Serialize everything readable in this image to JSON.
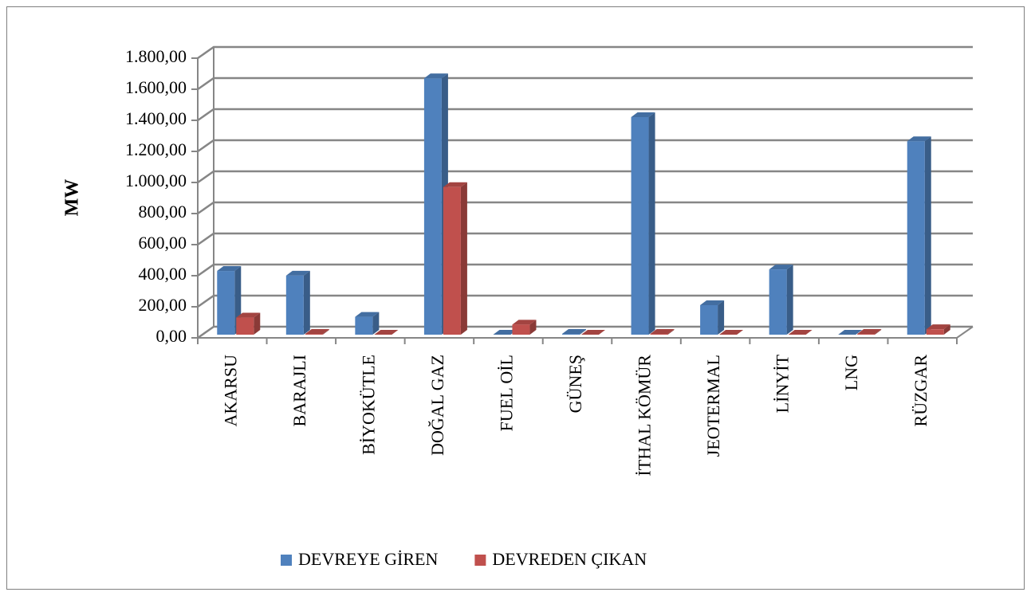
{
  "chart_data": {
    "type": "bar",
    "y_label": "MW",
    "categories": [
      "AKARSU",
      "BARAJLI",
      "BİYOKÜTLE",
      "DOĞAL GAZ",
      "FUEL OİL",
      "GÜNEŞ",
      "İTHAL KÖMÜR",
      "JEOTERMAL",
      "LİNYİT",
      "LNG",
      "RÜZGAR"
    ],
    "series": [
      {
        "name": "DEVREYE GİREN",
        "color": "#4f81bd",
        "values": [
          410,
          380,
          115,
          1650,
          0,
          5,
          1400,
          190,
          420,
          0,
          1245
        ]
      },
      {
        "name": "DEVREDEN ÇIKAN",
        "color": "#c0504d",
        "values": [
          110,
          5,
          0,
          950,
          65,
          0,
          5,
          0,
          0,
          5,
          35
        ]
      }
    ],
    "ylim": [
      0,
      1800
    ],
    "yticks": [
      {
        "value": 0,
        "label": "0,00"
      },
      {
        "value": 200,
        "label": "200,00"
      },
      {
        "value": 400,
        "label": "400,00"
      },
      {
        "value": 600,
        "label": "600,00"
      },
      {
        "value": 800,
        "label": "800,00"
      },
      {
        "value": 1000,
        "label": "1.000,00"
      },
      {
        "value": 1200,
        "label": "1.200,00"
      },
      {
        "value": 1400,
        "label": "1.400,00"
      },
      {
        "value": 1600,
        "label": "1.600,00"
      },
      {
        "value": 1800,
        "label": "1.800,00"
      }
    ],
    "grid": true,
    "legend": "bottom"
  }
}
